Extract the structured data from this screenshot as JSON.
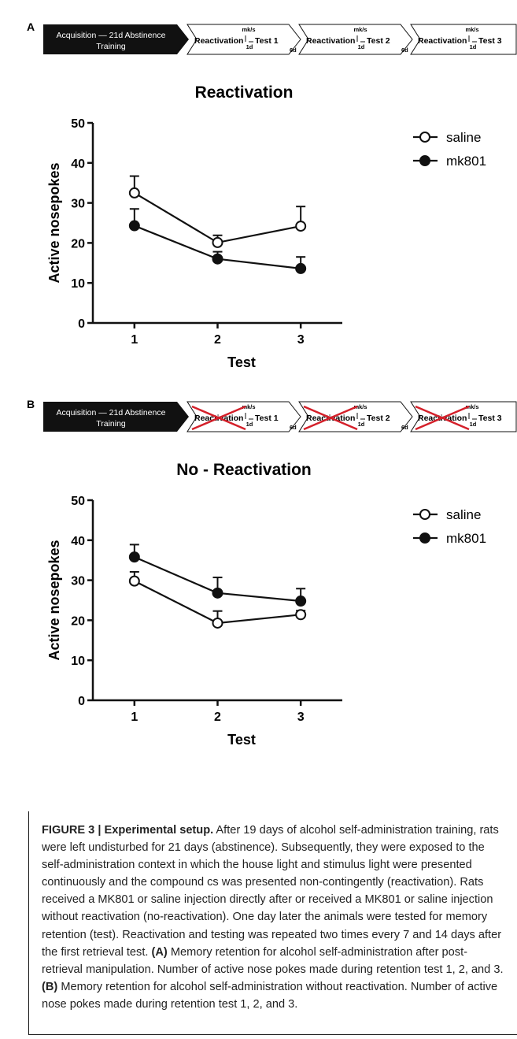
{
  "panels": [
    {
      "letter": "A",
      "timeline": {
        "first_box": {
          "line1": "Acquisition — 21d Abstinence",
          "line2": "Training"
        },
        "steps": [
          {
            "reactivation": "Reactivation",
            "mks": "mk/s",
            "delay": "1d",
            "test": "Test 1",
            "gap": "6d",
            "crossed": false
          },
          {
            "reactivation": "Reactivation",
            "mks": "mk/s",
            "delay": "1d",
            "test": "Test 2",
            "gap": "6d",
            "crossed": false
          },
          {
            "reactivation": "Reactivation",
            "mks": "mk/s",
            "delay": "1d",
            "test": "Test 3",
            "gap": "",
            "crossed": false
          }
        ]
      }
    },
    {
      "letter": "B",
      "timeline": {
        "first_box": {
          "line1": "Acquisition — 21d Abstinence",
          "line2": "Training"
        },
        "steps": [
          {
            "reactivation": "Reactivation",
            "mks": "mk/s",
            "delay": "1d",
            "test": "Test 1",
            "gap": "6d",
            "crossed": true
          },
          {
            "reactivation": "Reactivation",
            "mks": "mk/s",
            "delay": "1d",
            "test": "Test 2",
            "gap": "6d",
            "crossed": true
          },
          {
            "reactivation": "Reactivation",
            "mks": "mk/s",
            "delay": "1d",
            "test": "Test 3",
            "gap": "",
            "crossed": true
          }
        ]
      }
    }
  ],
  "chart_data": [
    {
      "type": "line",
      "title": "Reactivation",
      "xlabel": "Test",
      "ylabel": "Active nosepokes",
      "x": [
        1,
        2,
        3
      ],
      "xlim": [
        0.5,
        3.5
      ],
      "ylim": [
        0,
        50
      ],
      "yticks": [
        0,
        10,
        20,
        30,
        40,
        50
      ],
      "legend": "top-right",
      "series": [
        {
          "name": "saline",
          "marker": "open-circle",
          "values": [
            32.5,
            20.1,
            24.2
          ],
          "error": [
            4.2,
            1.8,
            4.9
          ]
        },
        {
          "name": "mk801",
          "marker": "filled-circle",
          "values": [
            24.3,
            16.0,
            13.6
          ],
          "error": [
            4.2,
            1.8,
            2.9
          ]
        }
      ]
    },
    {
      "type": "line",
      "title": "No - Reactivation",
      "xlabel": "Test",
      "ylabel": "Active nosepokes",
      "x": [
        1,
        2,
        3
      ],
      "xlim": [
        0.5,
        3.5
      ],
      "ylim": [
        0,
        50
      ],
      "yticks": [
        0,
        10,
        20,
        30,
        40,
        50
      ],
      "legend": "top-right",
      "series": [
        {
          "name": "saline",
          "marker": "open-circle",
          "values": [
            29.8,
            19.3,
            21.4
          ],
          "error": [
            2.3,
            3.0,
            1.0
          ]
        },
        {
          "name": "mk801",
          "marker": "filled-circle",
          "values": [
            35.8,
            26.8,
            24.8
          ],
          "error": [
            3.1,
            3.9,
            3.1
          ]
        }
      ]
    }
  ],
  "caption": {
    "label": "FIGURE 3 | Experimental setup.",
    "text": " After 19 days of alcohol self-administration training, rats were left undisturbed for 21 days (abstinence). Subsequently, they were exposed to the self-administration context in which the house light and stimulus light were presented continuously and the compound cs was presented non-contingently (reactivation). Rats received a MK801 or saline injection directly after or received a MK801 or saline injection without reactivation (no-reactivation). One day later the animals were tested for memory retention (test). Reactivation and testing was repeated two times every 7 and 14 days after the first retrieval test. ",
    "a_label": "(A)",
    "a_text": " Memory retention for alcohol self-administration after post-retrieval manipulation. Number of active nose pokes made during retention test 1, 2, and 3. ",
    "b_label": "(B)",
    "b_text": " Memory retention for alcohol self-administration without reactivation. Number of active nose pokes made during retention test 1, 2, and 3."
  }
}
